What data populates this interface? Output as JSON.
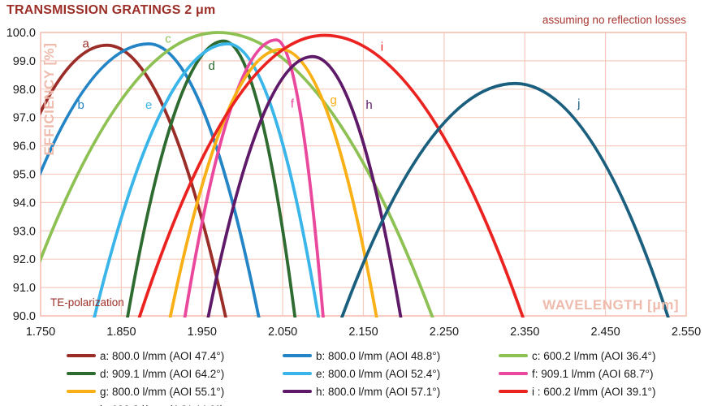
{
  "chart_data": {
    "type": "line",
    "title": "TRANSMISSION GRATINGS 2 μm",
    "note": "assuming no reflection losses",
    "xlabel": "WAVELENGTH [μm]",
    "ylabel": "EFFICIENCY [%]",
    "annotation": "TE-polarization",
    "xlim": [
      1.75,
      2.55
    ],
    "ylim": [
      90.0,
      100.0
    ],
    "x_tick_labels": [
      "1.750",
      "1.850",
      "1.950",
      "2.050",
      "2.150",
      "2.250",
      "2.350",
      "2.450",
      "2.550"
    ],
    "y_tick_labels": [
      "100.0",
      "99.0",
      "98.0",
      "97.0",
      "96.0",
      "95.0",
      "94.0",
      "93.0",
      "92.0",
      "91.0",
      "90.0"
    ],
    "grid": true,
    "legend_position": "bottom",
    "series": [
      {
        "id": "a",
        "legend": "a: 800.0 l/mm (AOI 47.4°)",
        "lines_per_mm": 800.0,
        "aoi_deg": 47.4,
        "color": "#9b2d28",
        "peak": {
          "wavelength": 1.832,
          "efficiency": 99.55
        },
        "crosses_90_at": [
          1.667,
          1.979
        ],
        "label_pos": {
          "wavelength": 1.806,
          "efficiency": 99.62
        }
      },
      {
        "id": "b",
        "legend": "b: 800.0 l/mm (AOI 48.8°)",
        "lines_per_mm": 800.0,
        "aoi_deg": 48.8,
        "color": "#2384c6",
        "peak": {
          "wavelength": 1.884,
          "efficiency": 99.6
        },
        "crosses_90_at": [
          1.689,
          2.02
        ],
        "label_pos": {
          "wavelength": 1.8,
          "efficiency": 97.45
        }
      },
      {
        "id": "c",
        "legend": "c: 600.2 l/mm (AOI 36.4°)",
        "lines_per_mm": 600.2,
        "aoi_deg": 36.4,
        "color": "#8dc153",
        "peak": {
          "wavelength": 1.97,
          "efficiency": 100.0
        },
        "crosses_90_at": [
          1.724,
          2.235
        ],
        "label_pos": {
          "wavelength": 1.908,
          "efficiency": 99.78
        }
      },
      {
        "id": "d",
        "legend": "d: 909.1 l/mm (AOI 64.2°)",
        "lines_per_mm": 909.1,
        "aoi_deg": 64.2,
        "color": "#2e6b30",
        "peak": {
          "wavelength": 1.977,
          "efficiency": 99.7
        },
        "crosses_90_at": [
          1.858,
          2.065
        ],
        "label_pos": {
          "wavelength": 1.962,
          "efficiency": 98.82
        }
      },
      {
        "id": "e",
        "legend": "e: 800.0 l/mm (AOI 52.4°)",
        "lines_per_mm": 800.0,
        "aoi_deg": 52.4,
        "color": "#3ab5e9",
        "peak": {
          "wavelength": 1.982,
          "efficiency": 99.6
        },
        "crosses_90_at": [
          1.817,
          2.094
        ],
        "label_pos": {
          "wavelength": 1.884,
          "efficiency": 97.45
        }
      },
      {
        "id": "f",
        "legend": "f: 909.1 l/mm (AOI 68.7°)",
        "lines_per_mm": 909.1,
        "aoi_deg": 68.7,
        "color": "#e9489d",
        "peak": {
          "wavelength": 2.042,
          "efficiency": 99.74
        },
        "crosses_90_at": [
          1.929,
          2.1
        ],
        "label_pos": {
          "wavelength": 2.062,
          "efficiency": 97.5
        }
      },
      {
        "id": "g",
        "legend": "g: 800.0 l/mm (AOI 55.1°)",
        "lines_per_mm": 800.0,
        "aoi_deg": 55.1,
        "color": "#f9b016",
        "peak": {
          "wavelength": 2.048,
          "efficiency": 99.4
        },
        "crosses_90_at": [
          1.911,
          2.166
        ],
        "label_pos": {
          "wavelength": 2.113,
          "efficiency": 97.62
        }
      },
      {
        "id": "h",
        "legend": "h: 800.0 l/mm (AOI 57.1°)",
        "lines_per_mm": 800.0,
        "aoi_deg": 57.1,
        "color": "#5e1a68",
        "peak": {
          "wavelength": 2.087,
          "efficiency": 99.15
        },
        "crosses_90_at": [
          1.958,
          2.196
        ],
        "label_pos": {
          "wavelength": 2.157,
          "efficiency": 97.45
        }
      },
      {
        "id": "i",
        "legend": "i : 600.2 l/mm (AOI 39.1°)",
        "lines_per_mm": 600.2,
        "aoi_deg": 39.1,
        "color": "#ea2320",
        "peak": {
          "wavelength": 2.102,
          "efficiency": 99.9
        },
        "crosses_90_at": [
          1.873,
          2.347
        ],
        "label_pos": {
          "wavelength": 2.173,
          "efficiency": 99.5
        }
      },
      {
        "id": "j",
        "legend": "j : 600.2 l/mm (AOI 44.9°)",
        "lines_per_mm": 600.2,
        "aoi_deg": 44.9,
        "color": "#1b5f7f",
        "peak": {
          "wavelength": 2.338,
          "efficiency": 98.2
        },
        "crosses_90_at": [
          2.124,
          2.527
        ],
        "label_pos": {
          "wavelength": 2.417,
          "efficiency": 97.5
        }
      }
    ],
    "colors": {
      "grid": "#f6cabe",
      "border": "#f3bfb2",
      "axis_label": "#eebbad",
      "tick_text": "#1a1a1a",
      "accent_dark_red": "#9c2e28"
    }
  }
}
